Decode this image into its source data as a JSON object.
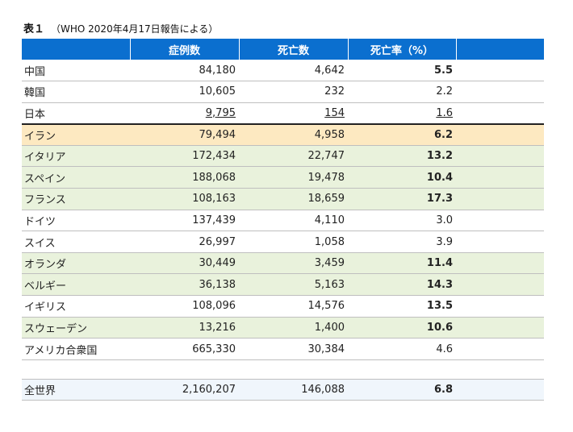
{
  "caption": {
    "label": "表１",
    "note": "（WHO 2020年4月17日報告による）"
  },
  "columns": [
    "",
    "症例数",
    "死亡数",
    "死亡率（%）",
    ""
  ],
  "rows": [
    {
      "country": "中国",
      "cases": "84,180",
      "deaths": "4,642",
      "rate": "5.5",
      "bold": true,
      "style": ""
    },
    {
      "country": "韓国",
      "cases": "10,605",
      "deaths": "232",
      "rate": "2.2",
      "bold": false,
      "style": ""
    },
    {
      "country": "日本",
      "cases": "9,795",
      "deaths": "154",
      "rate": "1.6",
      "bold": false,
      "style": "japan"
    },
    {
      "country": "イラン",
      "cases": "79,494",
      "deaths": "4,958",
      "rate": "6.2",
      "bold": true,
      "style": "iran"
    },
    {
      "country": "イタリア",
      "cases": "172,434",
      "deaths": "22,747",
      "rate": "13.2",
      "bold": true,
      "style": "hl"
    },
    {
      "country": "スペイン",
      "cases": "188,068",
      "deaths": "19,478",
      "rate": "10.4",
      "bold": true,
      "style": "hl"
    },
    {
      "country": "フランス",
      "cases": "108,163",
      "deaths": "18,659",
      "rate": "17.3",
      "bold": true,
      "style": "hl"
    },
    {
      "country": "ドイツ",
      "cases": "137,439",
      "deaths": "4,110",
      "rate": "3.0",
      "bold": false,
      "style": ""
    },
    {
      "country": "スイス",
      "cases": "26,997",
      "deaths": "1,058",
      "rate": "3.9",
      "bold": false,
      "style": ""
    },
    {
      "country": "オランダ",
      "cases": "30,449",
      "deaths": "3,459",
      "rate": "11.4",
      "bold": true,
      "style": "hl"
    },
    {
      "country": "ベルギー",
      "cases": "36,138",
      "deaths": "5,163",
      "rate": "14.3",
      "bold": true,
      "style": "hl"
    },
    {
      "country": "イギリス",
      "cases": "108,096",
      "deaths": "14,576",
      "rate": "13.5",
      "bold": true,
      "style": ""
    },
    {
      "country": "スウェーデン",
      "cases": "13,216",
      "deaths": "1,400",
      "rate": "10.6",
      "bold": true,
      "style": "hl"
    },
    {
      "country": "アメリカ合衆国",
      "cases": "665,330",
      "deaths": "30,384",
      "rate": "4.6",
      "bold": false,
      "style": ""
    }
  ],
  "total": {
    "country": "全世界",
    "cases": "2,160,207",
    "deaths": "146,088",
    "rate": "6.8",
    "bold": true
  },
  "colors": {
    "header": "#0b6fcf",
    "iran": "#fde9c1",
    "highlight": "#e9f2dc",
    "total": "#f0f6fc"
  }
}
